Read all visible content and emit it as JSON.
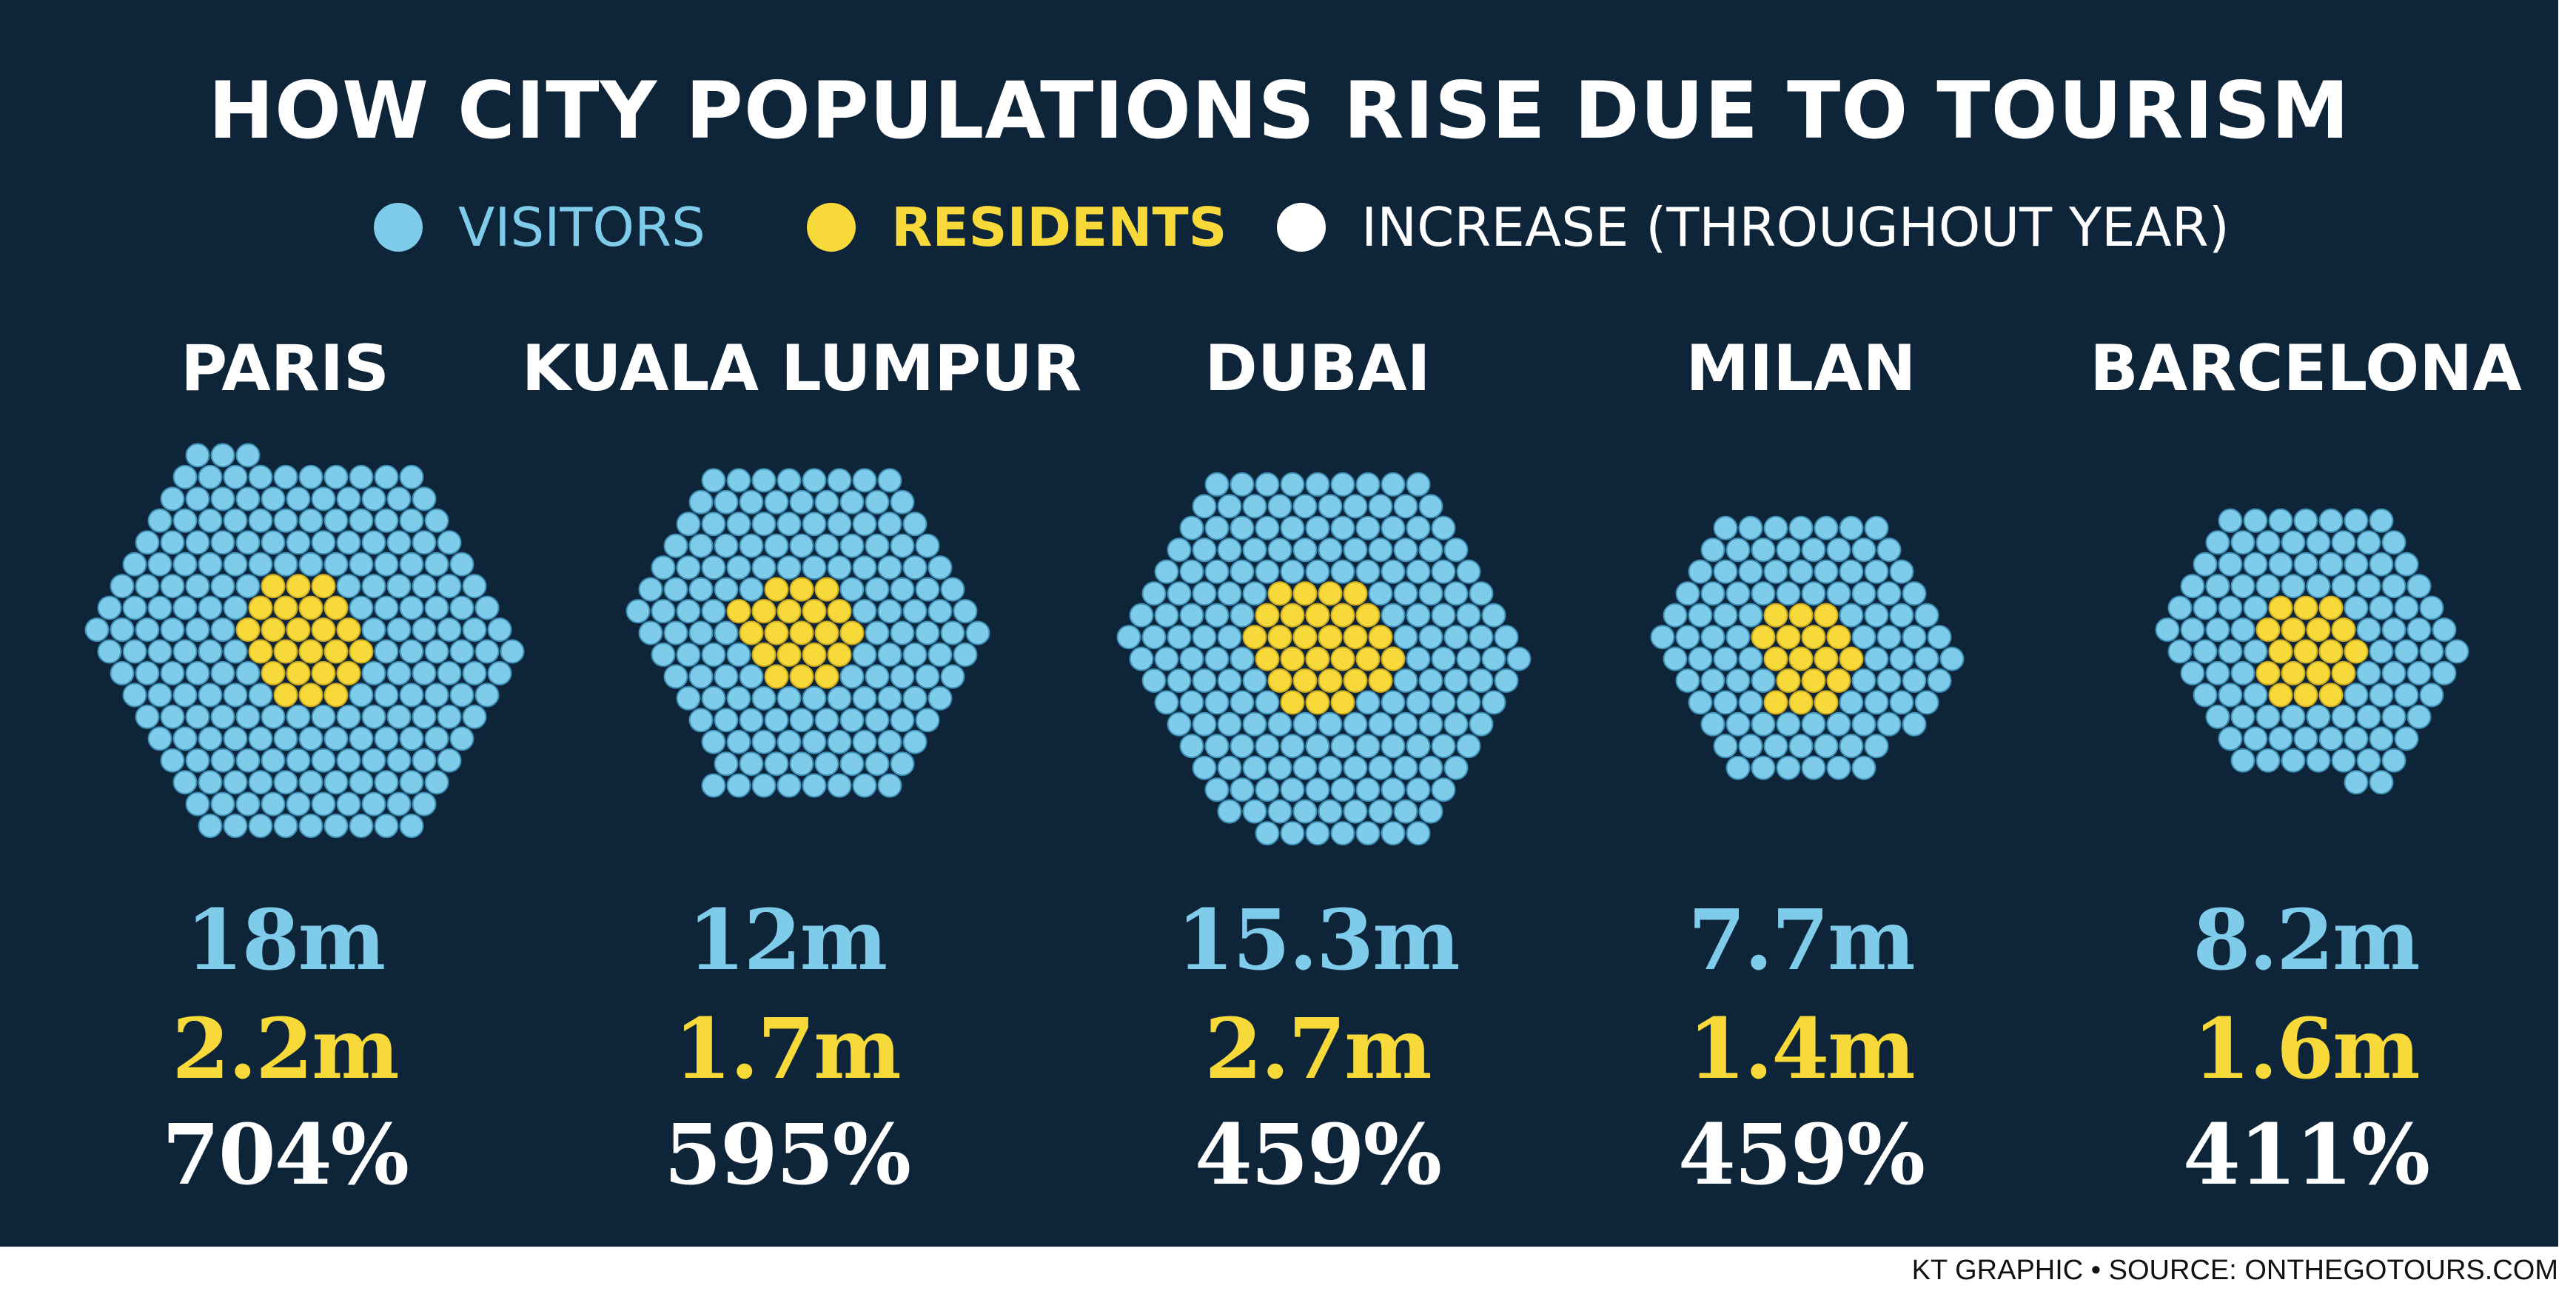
{
  "chart_data": {
    "type": "other",
    "title": "HOW CITY POPULATIONS RISE DUE TO TOURISM",
    "legend": [
      {
        "label": "VISITORS",
        "color": "#7fcbea"
      },
      {
        "label": "RESIDENTS",
        "color": "#f7d93a"
      },
      {
        "label": "INCREASE (THROUGHOUT YEAR)",
        "color": "#ffffff"
      }
    ],
    "legend_position": "top",
    "cities": [
      {
        "name": "PARIS",
        "visitors": "18m",
        "residents": "2.2m",
        "increase": "704%",
        "visitor_dots": 204,
        "resident_dots": 24
      },
      {
        "name": "KUALA LUMPUR",
        "visitors": "12m",
        "residents": "1.7m",
        "increase": "595%",
        "visitor_dots": 142,
        "resident_dots": 20
      },
      {
        "name": "DUBAI",
        "visitors": "15.3m",
        "residents": "2.7m",
        "increase": "459%",
        "visitor_dots": 178,
        "resident_dots": 29
      },
      {
        "name": "MILAN",
        "visitors": "7.7m",
        "residents": "1.4m",
        "increase": "459%",
        "visitor_dots": 95,
        "resident_dots": 17
      },
      {
        "name": "BARCELONA",
        "visitors": "8.2m",
        "residents": "1.6m",
        "increase": "411%",
        "visitor_dots": 98,
        "resident_dots": 18
      }
    ],
    "colors": {
      "background": "#0e2438",
      "visitors": "#7fcbea",
      "residents": "#f7d93a",
      "increase": "#ffffff",
      "dot_outline": "#3d8fb5"
    }
  },
  "credit": "KT GRAPHIC • SOURCE: ONTHEGOTOURS.COM"
}
